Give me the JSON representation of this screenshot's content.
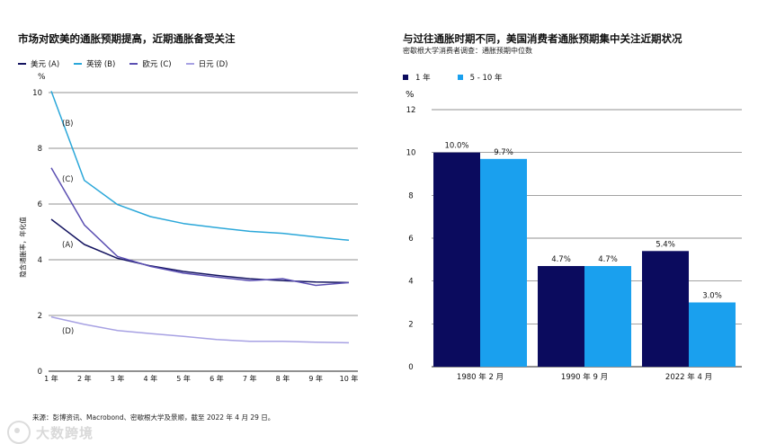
{
  "colors": {
    "usd": "#141460",
    "gbp": "#2aa7d9",
    "eur": "#5b4fb2",
    "jpy": "#a7a1e3",
    "bar_1y": "#0b0b5e",
    "bar_5_10y": "#1aa0ee",
    "grid": "#6b6b6b"
  },
  "left": {
    "title": "市场对欧美的通胀预期提高，近期通胀备受关注",
    "ylabel": "隐含通胀率，年化值",
    "unit": "%",
    "legend": [
      {
        "label": "美元 (A)",
        "color": "#141460"
      },
      {
        "label": "英镑 (B)",
        "color": "#2aa7d9"
      },
      {
        "label": "欧元 (C)",
        "color": "#5b4fb2"
      },
      {
        "label": "日元 (D)",
        "color": "#a7a1e3"
      }
    ],
    "series_tags": {
      "usd": "(A)",
      "gbp": "(B)",
      "eur": "(C)",
      "jpy": "(D)"
    }
  },
  "right": {
    "title": "与过往通胀时期不同，美国消费者通胀预期集中关注近期状况",
    "subtitle": "密歇根大学消费者调查：通胀预期中位数",
    "unit": "%",
    "legend": [
      {
        "label": "1 年",
        "color": "#0b0b5e"
      },
      {
        "label": "5 - 10 年",
        "color": "#1aa0ee"
      }
    ]
  },
  "source": "来源：彭博资讯、Macrobond、密歇根大学及景顺，截至 2022 年 4 月 29 日。",
  "watermark": "大数跨境",
  "chart_data": [
    {
      "type": "line",
      "title": "市场对欧美的通胀预期提高，近期通胀备受关注",
      "xlabel": "",
      "ylabel": "隐含通胀率，年化值",
      "x": [
        "1 年",
        "2 年",
        "3 年",
        "4 年",
        "5 年",
        "6 年",
        "7 年",
        "8 年",
        "9 年",
        "10 年"
      ],
      "ylim": [
        0,
        10
      ],
      "yticks": [
        0,
        2,
        4,
        6,
        8,
        10
      ],
      "series": [
        {
          "key": "usd",
          "name": "美元 (A)",
          "values": [
            5.45,
            4.55,
            4.05,
            3.78,
            3.58,
            3.44,
            3.32,
            3.25,
            3.2,
            3.18
          ]
        },
        {
          "key": "gbp",
          "name": "英镑 (B)",
          "values": [
            10.05,
            6.85,
            5.98,
            5.55,
            5.3,
            5.15,
            5.02,
            4.95,
            4.82,
            4.7
          ]
        },
        {
          "key": "eur",
          "name": "欧元 (C)",
          "values": [
            7.3,
            5.25,
            4.12,
            3.76,
            3.52,
            3.38,
            3.25,
            3.32,
            3.08,
            3.18
          ]
        },
        {
          "key": "jpy",
          "name": "日元 (D)",
          "values": [
            1.95,
            1.68,
            1.46,
            1.35,
            1.25,
            1.14,
            1.07,
            1.07,
            1.04,
            1.02
          ]
        }
      ]
    },
    {
      "type": "bar",
      "title": "与过往通胀时期不同，美国消费者通胀预期集中关注近期状况",
      "subtitle": "密歇根大学消费者调查：通胀预期中位数",
      "categories": [
        "1980 年 2 月",
        "1990 年 9 月",
        "2022 年 4 月"
      ],
      "ylim": [
        0,
        12
      ],
      "yticks": [
        0,
        2,
        4,
        6,
        8,
        10,
        12
      ],
      "series": [
        {
          "name": "1 年",
          "values": [
            10.0,
            4.7,
            5.4
          ],
          "labels": [
            "10.0%",
            "4.7%",
            "5.4%"
          ]
        },
        {
          "name": "5 - 10 年",
          "values": [
            9.7,
            4.7,
            3.0
          ],
          "labels": [
            "9.7%",
            "4.7%",
            "3.0%"
          ]
        }
      ]
    }
  ]
}
